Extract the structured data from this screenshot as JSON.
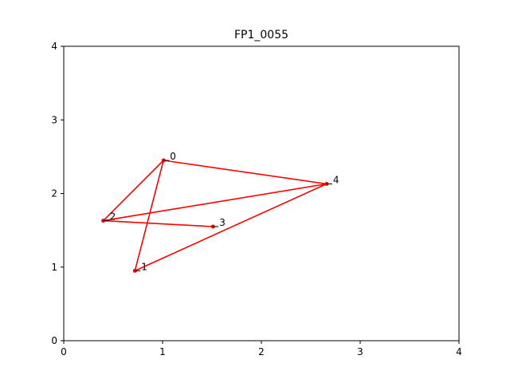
{
  "chart_data": {
    "type": "line",
    "title": "FP1_0055",
    "xlabel": "",
    "ylabel": "",
    "xlim": [
      0,
      4
    ],
    "ylim": [
      0,
      4
    ],
    "xticks": [
      "0",
      "1",
      "2",
      "3",
      "4"
    ],
    "yticks": [
      "0",
      "1",
      "2",
      "3",
      "4"
    ],
    "grid": false,
    "line_color": "#ff0000",
    "points": [
      {
        "label": "0",
        "x": 1.01,
        "y": 2.45
      },
      {
        "label": "1",
        "x": 0.72,
        "y": 0.95
      },
      {
        "label": "2",
        "x": 0.4,
        "y": 1.63
      },
      {
        "label": "3",
        "x": 1.51,
        "y": 1.55
      },
      {
        "label": "4",
        "x": 2.66,
        "y": 2.13
      }
    ],
    "path_order": [
      0,
      4,
      2,
      3,
      2,
      0,
      1,
      4
    ]
  }
}
